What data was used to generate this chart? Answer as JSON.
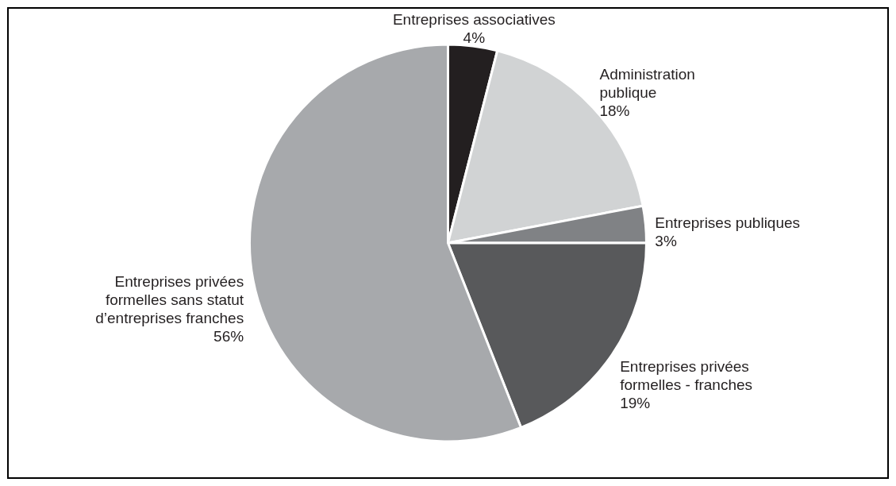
{
  "chart_data": {
    "type": "pie",
    "categories": [
      "Entreprises associatives",
      "Administration\npublique",
      "Entreprises publiques",
      "Entreprises privées\nformelles - franches",
      "Entreprises privées\nformelles sans statut\nd’entreprises franches"
    ],
    "values": [
      4,
      18,
      3,
      19,
      56
    ],
    "value_labels": [
      "4%",
      "18%",
      "3%",
      "19%",
      "56%"
    ],
    "colors": [
      "#231f20",
      "#d1d3d4",
      "#808285",
      "#58595b",
      "#a7a9ac"
    ]
  }
}
